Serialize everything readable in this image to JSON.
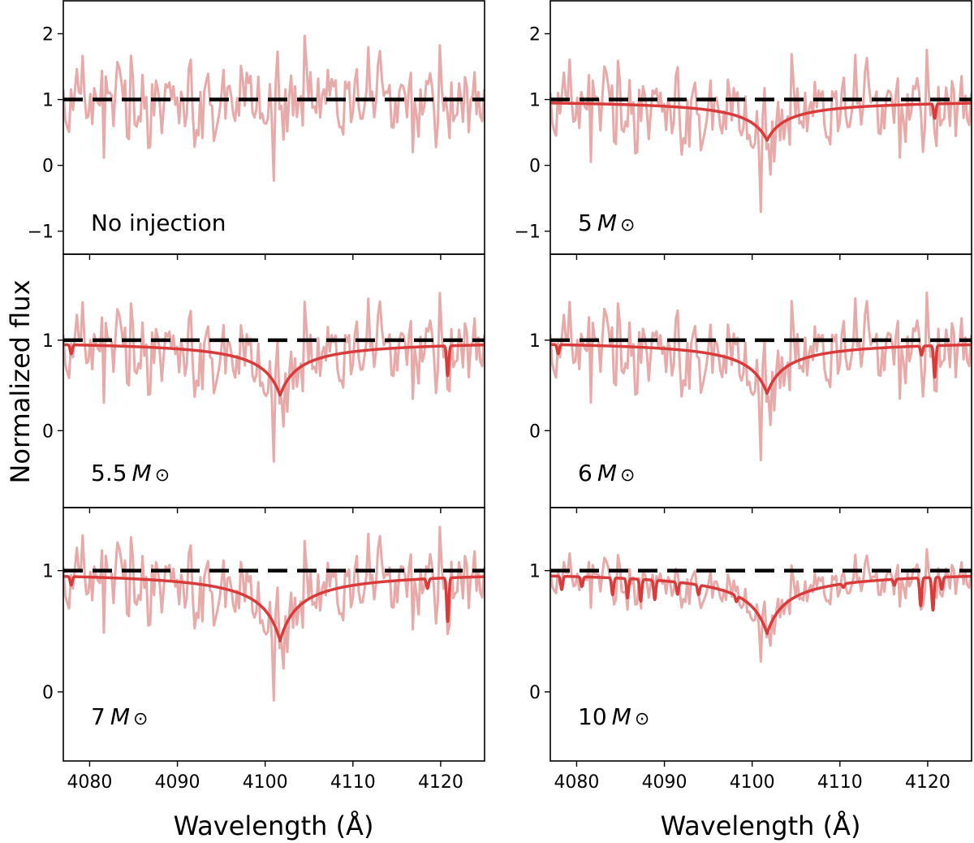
{
  "chart_data": {
    "type": "line",
    "xlabel": "Wavelength (Å)",
    "ylabel": "Normalized flux",
    "xlim": [
      4077,
      4125
    ],
    "xticks": [
      4080,
      4090,
      4100,
      4110,
      4120
    ],
    "line_center": 4101.7,
    "panels": [
      {
        "id": "no-injection",
        "label": "No injection",
        "mass": null,
        "ylim": [
          -1.35,
          2.5
        ],
        "yticks": [
          -1,
          0,
          1,
          2
        ],
        "ytick_labels": [
          "−1",
          "0",
          "1",
          "2"
        ],
        "show_xticklabels": false,
        "depth": 0,
        "width": 0,
        "noise": 0.35,
        "metal_lines": []
      },
      {
        "id": "5-msun",
        "label": "5",
        "mass": 5,
        "ylim": [
          -1.35,
          2.5
        ],
        "yticks": [
          -1,
          0,
          1,
          2
        ],
        "ytick_labels": [
          "−1",
          "0",
          "1",
          "2"
        ],
        "show_xticklabels": false,
        "depth": 0.62,
        "width": 2.3,
        "noise": 0.35,
        "metal_lines": [
          {
            "center": 4120.8,
            "depth": 0.22
          }
        ]
      },
      {
        "id": "5p5-msun",
        "label": "5.5",
        "mass": 5.5,
        "ylim": [
          -0.85,
          1.95
        ],
        "yticks": [
          0,
          1
        ],
        "ytick_labels": [
          "0",
          "1"
        ],
        "show_xticklabels": false,
        "depth": 0.61,
        "width": 2.2,
        "noise": 0.25,
        "metal_lines": [
          {
            "center": 4077.9,
            "depth": 0.1
          },
          {
            "center": 4120.8,
            "depth": 0.33
          }
        ]
      },
      {
        "id": "6-msun",
        "label": "6",
        "mass": 6,
        "ylim": [
          -0.85,
          1.95
        ],
        "yticks": [
          0,
          1
        ],
        "ytick_labels": [
          "0",
          "1"
        ],
        "show_xticklabels": false,
        "depth": 0.59,
        "width": 2.2,
        "noise": 0.25,
        "metal_lines": [
          {
            "center": 4077.9,
            "depth": 0.1
          },
          {
            "center": 4119.3,
            "depth": 0.1
          },
          {
            "center": 4120.8,
            "depth": 0.35
          }
        ]
      },
      {
        "id": "7-msun",
        "label": "7",
        "mass": 7,
        "ylim": [
          -0.57,
          1.52
        ],
        "yticks": [
          0,
          1
        ],
        "ytick_labels": [
          "0",
          "1"
        ],
        "show_xticklabels": true,
        "depth": 0.58,
        "width": 2.2,
        "noise": 0.18,
        "metal_lines": [
          {
            "center": 4077.9,
            "depth": 0.07
          },
          {
            "center": 4118.5,
            "depth": 0.08
          },
          {
            "center": 4120.8,
            "depth": 0.36
          }
        ]
      },
      {
        "id": "10-msun",
        "label": "10",
        "mass": 10,
        "ylim": [
          -0.57,
          1.52
        ],
        "yticks": [
          0,
          1
        ],
        "ytick_labels": [
          "0",
          "1"
        ],
        "show_xticklabels": true,
        "depth": 0.52,
        "width": 2.3,
        "noise": 0.1,
        "metal_lines": [
          {
            "center": 4078.3,
            "depth": 0.11
          },
          {
            "center": 4080.6,
            "depth": 0.08
          },
          {
            "center": 4084.1,
            "depth": 0.14
          },
          {
            "center": 4085.8,
            "depth": 0.16
          },
          {
            "center": 4087.3,
            "depth": 0.18
          },
          {
            "center": 4088.9,
            "depth": 0.16
          },
          {
            "center": 4091.5,
            "depth": 0.1
          },
          {
            "center": 4093.9,
            "depth": 0.08
          },
          {
            "center": 4098.2,
            "depth": 0.05
          },
          {
            "center": 4110.4,
            "depth": 0.03
          },
          {
            "center": 4116.2,
            "depth": 0.05
          },
          {
            "center": 4119.2,
            "depth": 0.23
          },
          {
            "center": 4120.6,
            "depth": 0.27
          },
          {
            "center": 4121.6,
            "depth": 0.1
          }
        ]
      }
    ],
    "series": [
      {
        "name": "Observed spectrum",
        "color": "#e8a9a9"
      },
      {
        "name": "Injected model",
        "color": "#d93a3a"
      },
      {
        "name": "Continuum",
        "color": "#000000",
        "value": 1
      }
    ]
  }
}
